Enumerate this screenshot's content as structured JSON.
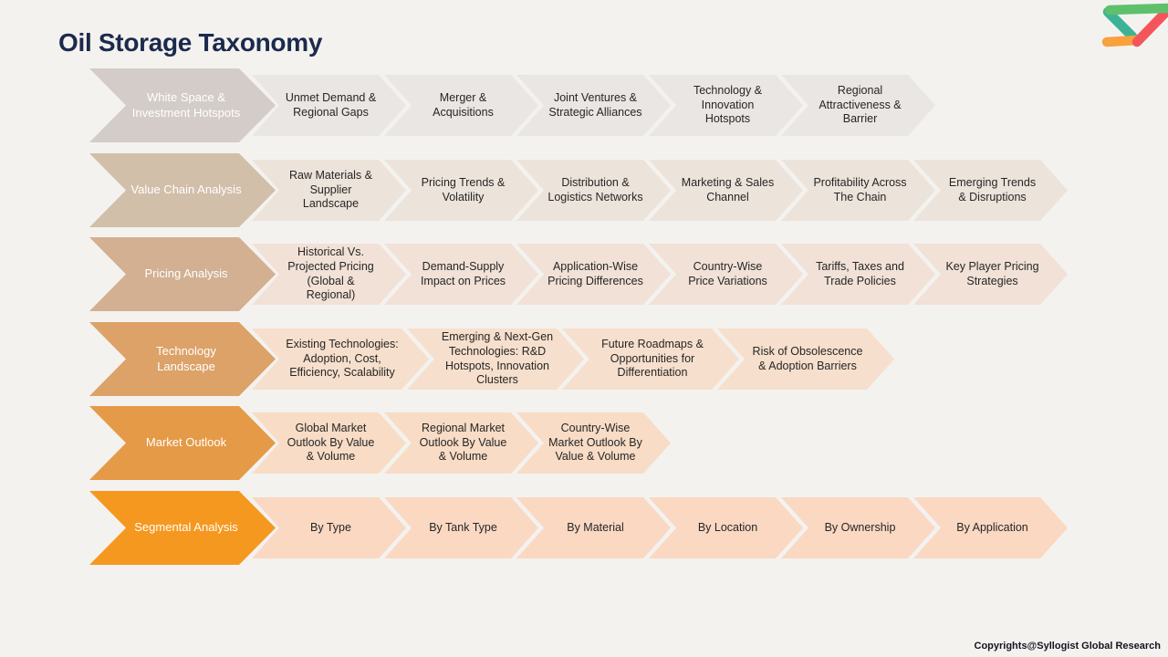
{
  "page": {
    "title": "Oil Storage Taxonomy",
    "title_color": "#1b2a4c",
    "background": "#f4f2ef",
    "copyright": "Copyrights@Syllogist Global Research"
  },
  "logo": {
    "green": "#5fc06c",
    "teal": "#3db396",
    "red": "#f4555c",
    "orange": "#f9a13c"
  },
  "item_text_color": "#262626",
  "rows": [
    {
      "label": "White Space & Investment Hotspots",
      "label_color": "#ffffff",
      "lead_color": "#d3ccc8",
      "item_color": "#e9e6e3",
      "items": [
        "Unmet Demand & Regional Gaps",
        "Merger & Acquisitions",
        "Joint Ventures & Strategic Alliances",
        "Technology & Innovation Hotspots",
        "Regional Attractiveness & Barrier"
      ]
    },
    {
      "label": "Value Chain Analysis",
      "label_color": "#ffffff",
      "lead_color": "#d1bfa9",
      "item_color": "#ece3da",
      "items": [
        "Raw Materials & Supplier Landscape",
        "Pricing Trends & Volatility",
        "Distribution & Logistics Networks",
        "Marketing & Sales Channel",
        "Profitability Across The Chain",
        "Emerging Trends & Disruptions"
      ]
    },
    {
      "label": "Pricing Analysis",
      "label_color": "#ffffff",
      "lead_color": "#d2b091",
      "item_color": "#f1e1d6",
      "items": [
        "Historical Vs. Projected Pricing (Global & Regional)",
        "Demand-Supply Impact on Prices",
        "Application-Wise Pricing Differences",
        "Country-Wise Price Variations",
        "Tariffs, Taxes and Trade Policies",
        "Key Player Pricing Strategies"
      ]
    },
    {
      "label": "Technology Landscape",
      "label_color": "#ffffff",
      "lead_color": "#dca268",
      "item_color": "#f6dfcc",
      "items": [
        "Existing Technologies: Adoption, Cost, Efficiency, Scalability",
        "Emerging & Next-Gen Technologies: R&D Hotspots, Innovation Clusters",
        "Future Roadmaps & Opportunities for Differentiation",
        "Risk of Obsolescence & Adoption Barriers"
      ]
    },
    {
      "label": "Market Outlook",
      "label_color": "#ffffff",
      "lead_color": "#e59a47",
      "item_color": "#f8dcc5",
      "items": [
        "Global Market Outlook By Value & Volume",
        "Regional Market Outlook By Value & Volume",
        "Country-Wise Market Outlook By Value & Volume"
      ]
    },
    {
      "label": "Segmental Analysis",
      "label_color": "#ffffff",
      "lead_color": "#f5981f",
      "item_color": "#fad8c2",
      "items": [
        "By Type",
        "By Tank Type",
        "By Material",
        "By Location",
        "By Ownership",
        "By Application"
      ]
    }
  ]
}
